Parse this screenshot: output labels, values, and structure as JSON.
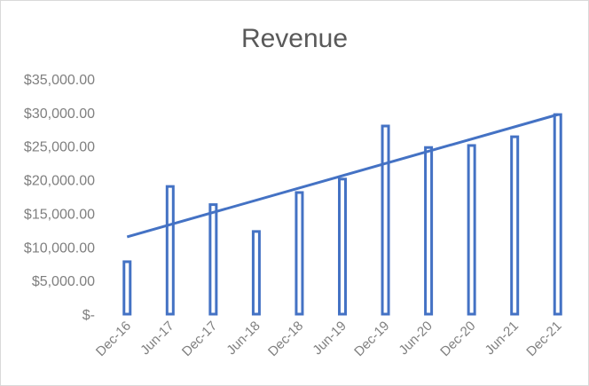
{
  "chart_data": {
    "type": "bar",
    "title": "Revenue",
    "xlabel": "",
    "ylabel": "",
    "categories": [
      "Dec-16",
      "Jun-17",
      "Dec-17",
      "Jun-18",
      "Dec-18",
      "Jun-19",
      "Dec-19",
      "Jun-20",
      "Dec-20",
      "Jun-21",
      "Dec-21"
    ],
    "series": [
      {
        "values": [
          7800,
          19000,
          16300,
          12300,
          18100,
          20100,
          28000,
          24800,
          25100,
          26400,
          29700
        ]
      }
    ],
    "trendline": {
      "type": "linear",
      "start": 11500,
      "end": 29700
    },
    "y_tick_labels": [
      "$-",
      "$5,000.00",
      "$10,000.00",
      "$15,000.00",
      "$20,000.00",
      "$25,000.00",
      "$30,000.00",
      "$35,000.00"
    ],
    "ylim": [
      0,
      35000
    ],
    "grid": false,
    "legend": "none",
    "colors": {
      "bar_outline": "#4472c4",
      "trendline": "#4472c4",
      "text": "#7f7f7f",
      "title": "#595959"
    }
  }
}
